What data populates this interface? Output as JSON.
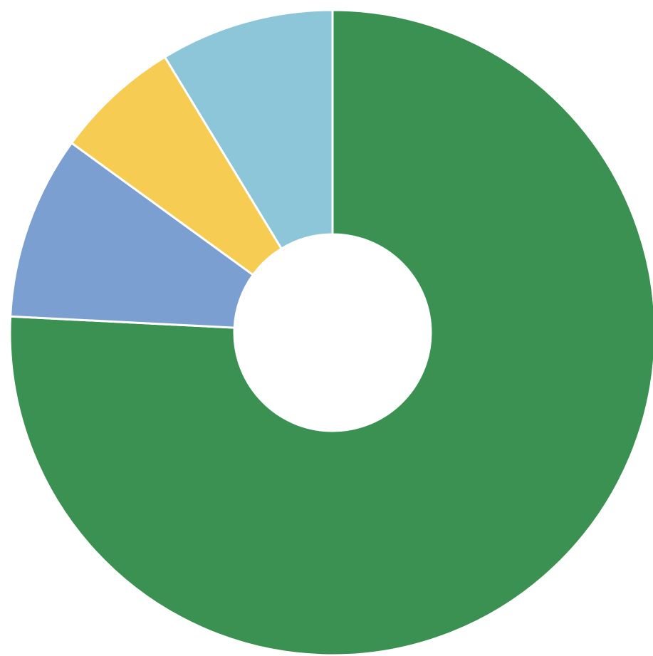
{
  "chart_data": {
    "type": "pie",
    "variant": "donut",
    "title": "",
    "legend": "none",
    "slices": [
      {
        "value": 75.8,
        "color": "#3a9152"
      },
      {
        "value": 9.2,
        "color": "#7b9fd0"
      },
      {
        "value": 6.3,
        "color": "#f7cc52"
      },
      {
        "value": 8.7,
        "color": "#8cc6d8"
      }
    ]
  }
}
